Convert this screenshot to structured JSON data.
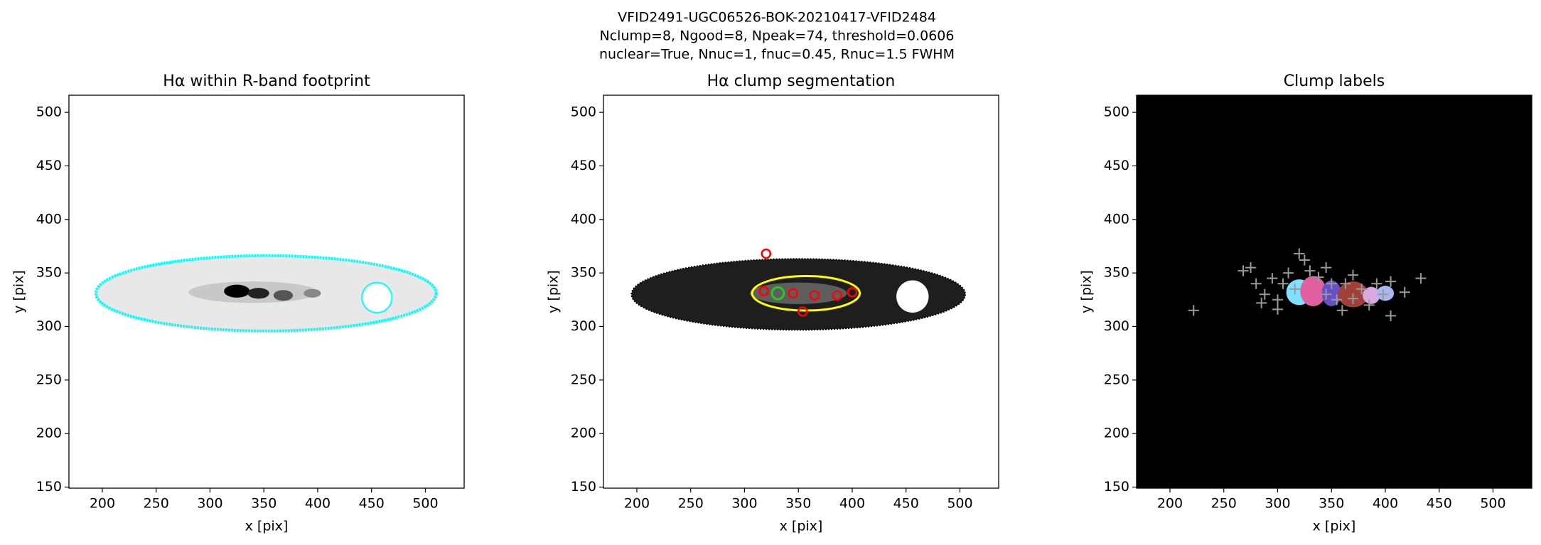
{
  "title": [
    "VFID2491-UGC06526-BOK-20210417-VFID2484",
    "Nclump=8, Ngood=8, Npeak=74, threshold=0.0606",
    "nuclear=True, Nnuc=1, fnuc=0.45, Rnuc=1.5 FWHM"
  ],
  "chart_data": [
    {
      "type": "image",
      "title": "Hα within R-band footprint",
      "xlabel": "x [pix]",
      "ylabel": "y [pix]",
      "xlim": [
        169,
        536
      ],
      "ylim": [
        149,
        516
      ],
      "xticks": [
        200,
        250,
        300,
        350,
        400,
        450,
        500
      ],
      "yticks": [
        150,
        200,
        250,
        300,
        350,
        400,
        450,
        500
      ]
    },
    {
      "type": "image",
      "title": "Hα clump segmentation",
      "xlabel": "x [pix]",
      "ylabel": "y [pix]",
      "xlim": [
        169,
        536
      ],
      "ylim": [
        149,
        516
      ],
      "xticks": [
        200,
        250,
        300,
        350,
        400,
        450,
        500
      ],
      "yticks": [
        150,
        200,
        250,
        300,
        350,
        400,
        450,
        500
      ]
    },
    {
      "type": "image",
      "title": "Clump labels",
      "xlabel": "x [pix]",
      "ylabel": "y [pix]",
      "xlim": [
        169,
        536
      ],
      "ylim": [
        149,
        516
      ],
      "xticks": [
        200,
        250,
        300,
        350,
        400,
        450,
        500
      ],
      "yticks": [
        150,
        200,
        250,
        300,
        350,
        400,
        450,
        500
      ]
    }
  ]
}
